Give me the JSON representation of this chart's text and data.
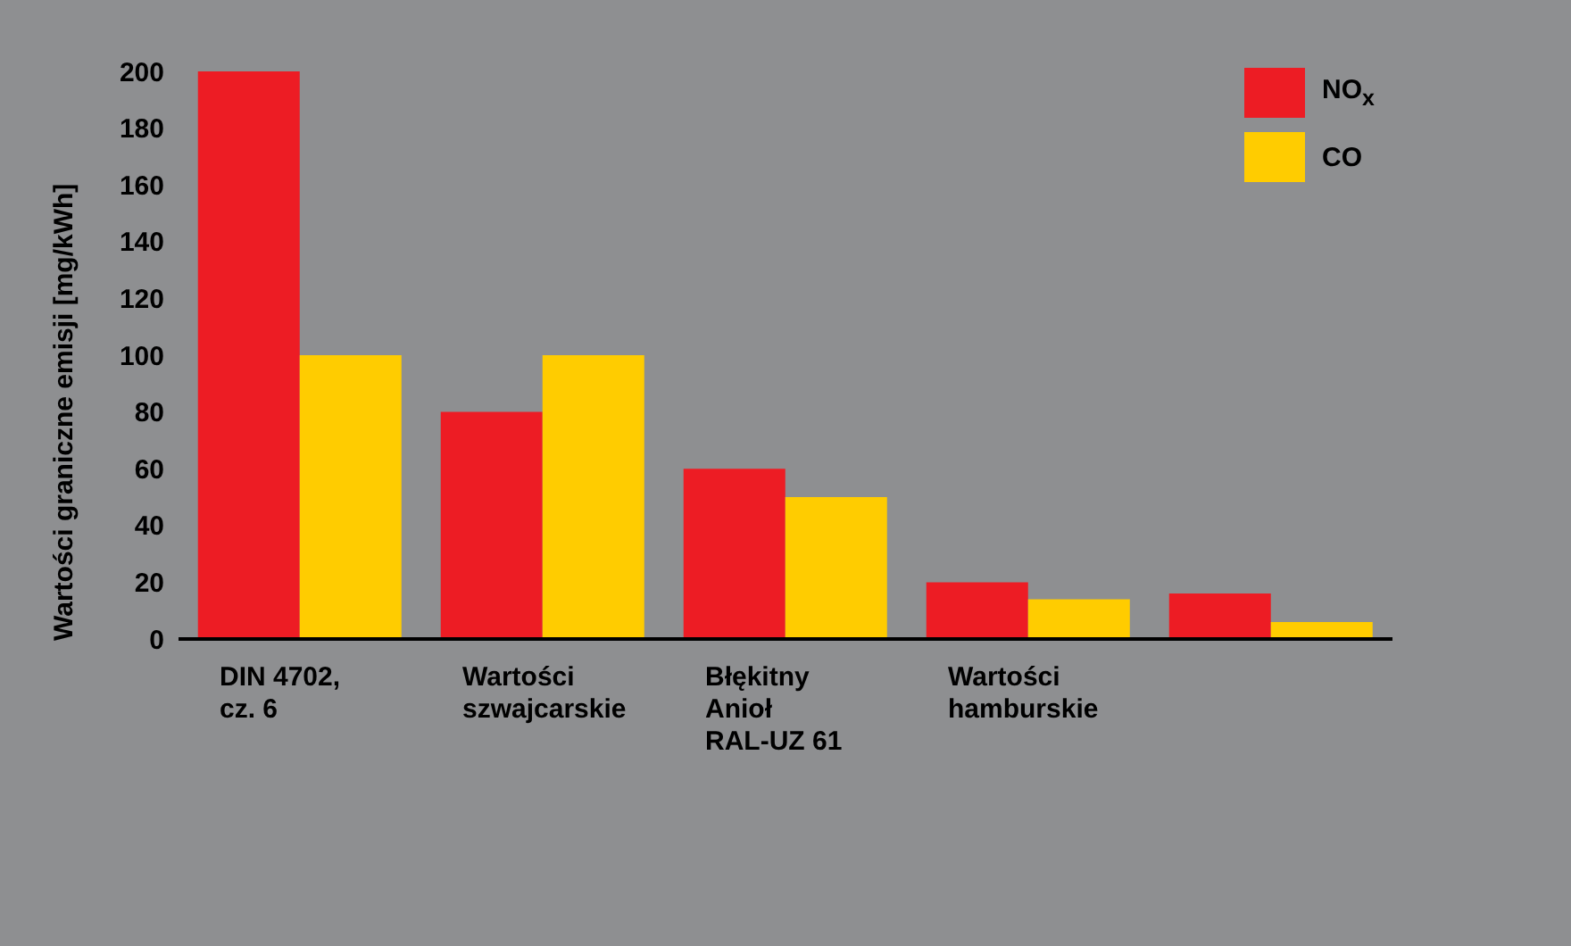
{
  "chart_data": {
    "type": "bar",
    "ylabel": "Wartości graniczne emisji [mg/kWh]",
    "categories": [
      "DIN 4702, cz. 6",
      "Wartości szwajcarskie",
      "Błękitny Anioł RAL-UZ 61",
      "Wartości hamburskie",
      null
    ],
    "series": [
      {
        "name": "NO$_{x}$",
        "color": "#ed1c24",
        "values": [
          200,
          80,
          60,
          20,
          16
        ]
      },
      {
        "name": "CO",
        "color": "#ffcc00",
        "values": [
          100,
          100,
          50,
          14,
          6
        ]
      }
    ],
    "ylim": [
      0,
      200
    ],
    "yticks": [
      0,
      20,
      40,
      60,
      80,
      100,
      120,
      140,
      160,
      180,
      200
    ],
    "grid": false,
    "legend": "top right"
  }
}
